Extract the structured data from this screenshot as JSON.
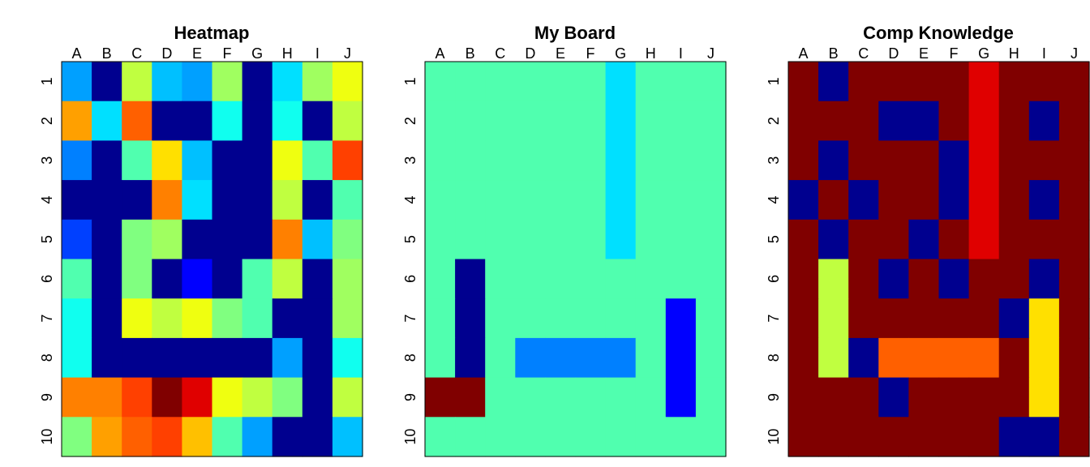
{
  "palette": {
    "0": "#00008F",
    "1": "#0000FF",
    "2": "#0040FF",
    "3": "#0080FF",
    "4": "#00A0FF",
    "5": "#00C0FF",
    "6": "#00E0FF",
    "7": "#10FFEF",
    "8": "#50FFAF",
    "9": "#80FF80",
    "10": "#A0FF60",
    "11": "#C0FF40",
    "12": "#EFFF10",
    "13": "#FFE000",
    "14": "#FFC000",
    "15": "#FFA000",
    "16": "#FF8000",
    "17": "#FF6000",
    "18": "#FF4000",
    "19": "#E00000",
    "20": "#800000"
  },
  "chart_data": [
    {
      "type": "heatmap",
      "title": "Heatmap",
      "x_labels": [
        "A",
        "B",
        "C",
        "D",
        "E",
        "F",
        "G",
        "H",
        "I",
        "J"
      ],
      "y_labels": [
        "1",
        "2",
        "3",
        "4",
        "5",
        "6",
        "7",
        "8",
        "9",
        "10"
      ],
      "values": [
        [
          4,
          0,
          11,
          5,
          4,
          10,
          0,
          6,
          10,
          12
        ],
        [
          15,
          6,
          17,
          0,
          0,
          7,
          0,
          7,
          0,
          11
        ],
        [
          3,
          0,
          8,
          13,
          5,
          0,
          0,
          12,
          8,
          18
        ],
        [
          0,
          0,
          0,
          16,
          6,
          0,
          0,
          11,
          0,
          8
        ],
        [
          2,
          0,
          9,
          10,
          0,
          0,
          0,
          16,
          5,
          9
        ],
        [
          8,
          0,
          9,
          0,
          1,
          0,
          8,
          11,
          0,
          10
        ],
        [
          7,
          0,
          12,
          11,
          12,
          9,
          8,
          0,
          0,
          10
        ],
        [
          7,
          0,
          0,
          0,
          0,
          0,
          0,
          4,
          0,
          7
        ],
        [
          16,
          16,
          18,
          20,
          19,
          12,
          11,
          9,
          0,
          11
        ],
        [
          9,
          15,
          17,
          18,
          14,
          8,
          4,
          0,
          0,
          5
        ]
      ]
    },
    {
      "type": "heatmap",
      "title": "My Board",
      "x_labels": [
        "A",
        "B",
        "C",
        "D",
        "E",
        "F",
        "G",
        "H",
        "I",
        "J"
      ],
      "y_labels": [
        "1",
        "2",
        "3",
        "4",
        "5",
        "6",
        "7",
        "8",
        "9",
        "10"
      ],
      "values": [
        [
          8,
          8,
          8,
          8,
          8,
          8,
          6,
          8,
          8,
          8
        ],
        [
          8,
          8,
          8,
          8,
          8,
          8,
          6,
          8,
          8,
          8
        ],
        [
          8,
          8,
          8,
          8,
          8,
          8,
          6,
          8,
          8,
          8
        ],
        [
          8,
          8,
          8,
          8,
          8,
          8,
          6,
          8,
          8,
          8
        ],
        [
          8,
          8,
          8,
          8,
          8,
          8,
          6,
          8,
          8,
          8
        ],
        [
          8,
          0,
          8,
          8,
          8,
          8,
          8,
          8,
          8,
          8
        ],
        [
          8,
          0,
          8,
          8,
          8,
          8,
          8,
          8,
          1,
          8
        ],
        [
          8,
          0,
          8,
          3,
          3,
          3,
          3,
          8,
          1,
          8
        ],
        [
          20,
          20,
          8,
          8,
          8,
          8,
          8,
          8,
          1,
          8
        ],
        [
          8,
          8,
          8,
          8,
          8,
          8,
          8,
          8,
          8,
          8
        ]
      ]
    },
    {
      "type": "heatmap",
      "title": "Comp Knowledge",
      "x_labels": [
        "A",
        "B",
        "C",
        "D",
        "E",
        "F",
        "G",
        "H",
        "I",
        "J"
      ],
      "y_labels": [
        "1",
        "2",
        "3",
        "4",
        "5",
        "6",
        "7",
        "8",
        "9",
        "10"
      ],
      "values": [
        [
          20,
          0,
          20,
          20,
          20,
          20,
          19,
          20,
          20,
          20
        ],
        [
          20,
          20,
          20,
          0,
          0,
          20,
          19,
          20,
          0,
          20
        ],
        [
          20,
          0,
          20,
          20,
          20,
          0,
          19,
          20,
          20,
          20
        ],
        [
          0,
          20,
          0,
          20,
          20,
          0,
          19,
          20,
          0,
          20
        ],
        [
          20,
          0,
          20,
          20,
          0,
          20,
          19,
          20,
          20,
          20
        ],
        [
          20,
          11,
          20,
          0,
          20,
          0,
          20,
          20,
          0,
          20
        ],
        [
          20,
          11,
          20,
          20,
          20,
          20,
          20,
          0,
          13,
          20
        ],
        [
          20,
          11,
          0,
          17,
          17,
          17,
          17,
          20,
          13,
          20
        ],
        [
          20,
          20,
          20,
          0,
          20,
          20,
          20,
          20,
          13,
          20
        ],
        [
          20,
          20,
          20,
          20,
          20,
          20,
          20,
          0,
          0,
          20
        ]
      ]
    }
  ]
}
